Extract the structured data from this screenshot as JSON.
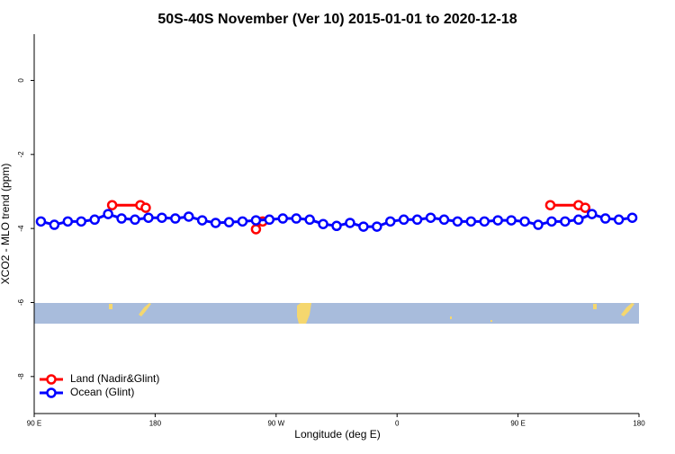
{
  "chart_data": {
    "type": "line",
    "title": "50S-40S November (Ver 10)   2015-01-01 to 2020-12-18",
    "x_label": "Longitude (deg E)",
    "y_label": "XCO2 - MLO trend (ppm)",
    "xlim": [
      90,
      540
    ],
    "ylim": [
      -9.0,
      1.25
    ],
    "xticks": [
      {
        "value": 90,
        "label": "90 E"
      },
      {
        "value": 180,
        "label": "180"
      },
      {
        "value": 270,
        "label": "90 W"
      },
      {
        "value": 360,
        "label": "0"
      },
      {
        "value": 450,
        "label": "90 E"
      },
      {
        "value": 540,
        "label": "180"
      }
    ],
    "yticks": [
      0,
      -2,
      -4,
      -6,
      -8
    ],
    "legend": "bottom-left",
    "series": [
      {
        "name": "Land (Nadir&Glint)",
        "color": "#ff0000",
        "x": [
          148,
          169,
          173,
          255,
          260,
          474,
          495,
          500
        ],
        "values": [
          -3.37,
          -3.37,
          -3.44,
          -4.02,
          -3.81,
          -3.37,
          -3.37,
          -3.44
        ]
      },
      {
        "name": "Ocean (Glint)",
        "color": "#0000ff",
        "x": [
          95,
          105,
          115,
          125,
          135,
          145,
          155,
          165,
          175,
          185,
          195,
          205,
          215,
          225,
          235,
          245,
          255,
          265,
          275,
          285,
          295,
          305,
          315,
          325,
          335,
          345,
          355,
          365,
          375,
          385,
          395,
          405,
          415,
          425,
          435,
          445,
          455,
          465,
          475,
          485,
          495,
          505,
          515,
          525,
          535
        ],
        "values": [
          -3.81,
          -3.9,
          -3.81,
          -3.81,
          -3.76,
          -3.61,
          -3.73,
          -3.76,
          -3.71,
          -3.71,
          -3.73,
          -3.68,
          -3.78,
          -3.85,
          -3.83,
          -3.81,
          -3.78,
          -3.76,
          -3.73,
          -3.73,
          -3.76,
          -3.88,
          -3.93,
          -3.85,
          -3.95,
          -3.95,
          -3.81,
          -3.76,
          -3.76,
          -3.71,
          -3.76,
          -3.81,
          -3.81,
          -3.81,
          -3.78,
          -3.78,
          -3.81,
          -3.9,
          -3.81,
          -3.81,
          -3.76,
          -3.61,
          -3.73,
          -3.76,
          -3.71
        ]
      }
    ]
  }
}
